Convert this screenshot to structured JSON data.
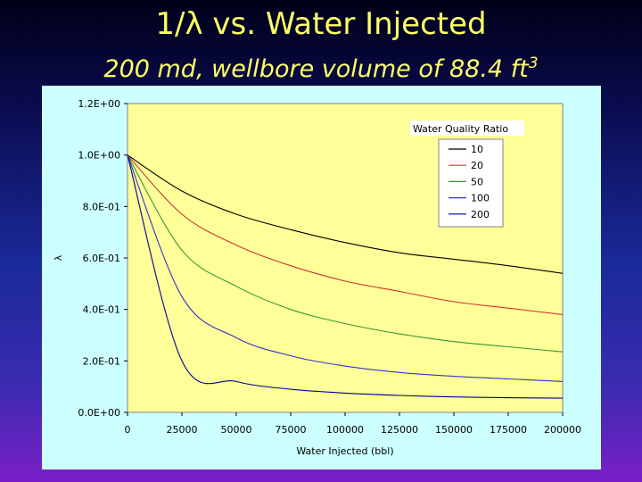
{
  "slide": {
    "title": "1/λ vs. Water Injected",
    "subtitle": "200 md, wellbore volume of 88.4 ft",
    "subtitle_superscript": "3"
  },
  "chart_data": {
    "type": "line",
    "title": "",
    "xlabel": "Water Injected (bbl)",
    "ylabel": "λ",
    "xlim": [
      0,
      200000
    ],
    "ylim": [
      0,
      1.2
    ],
    "x_ticks": [
      "0",
      "25000",
      "50000",
      "75000",
      "100000",
      "125000",
      "150000",
      "175000",
      "200000"
    ],
    "y_ticks": [
      "0.0E+00",
      "2.0E-01",
      "4.0E-01",
      "6.0E-01",
      "8.0E-01",
      "1.0E+00",
      "1.2E+00"
    ],
    "grid": false,
    "plot_background": "#ffff99",
    "legend": {
      "title": "Water Quality Ratio",
      "placement": "top-right"
    },
    "series": [
      {
        "name": "10",
        "color": "#000000",
        "x": [
          0,
          25000,
          50000,
          75000,
          100000,
          125000,
          150000,
          175000,
          200000
        ],
        "values": [
          1.0,
          0.86,
          0.77,
          0.71,
          0.66,
          0.62,
          0.595,
          0.57,
          0.54
        ]
      },
      {
        "name": "20",
        "color": "#cc3333",
        "x": [
          0,
          25000,
          50000,
          75000,
          100000,
          125000,
          150000,
          175000,
          200000
        ],
        "values": [
          1.0,
          0.77,
          0.65,
          0.57,
          0.51,
          0.47,
          0.43,
          0.405,
          0.38
        ]
      },
      {
        "name": "50",
        "color": "#339933",
        "x": [
          0,
          25000,
          50000,
          75000,
          100000,
          125000,
          150000,
          175000,
          200000
        ],
        "values": [
          1.0,
          0.63,
          0.49,
          0.4,
          0.345,
          0.305,
          0.275,
          0.255,
          0.235
        ]
      },
      {
        "name": "100",
        "color": "#3333cc",
        "x": [
          0,
          25000,
          50000,
          75000,
          100000,
          125000,
          150000,
          175000,
          200000
        ],
        "values": [
          1.0,
          0.45,
          0.29,
          0.22,
          0.18,
          0.155,
          0.14,
          0.13,
          0.12
        ]
      },
      {
        "name": "200",
        "color": "#000099",
        "x": [
          0,
          25000,
          50000,
          75000,
          100000,
          125000,
          150000,
          175000,
          200000
        ],
        "values": [
          1.0,
          0.2,
          0.12,
          0.09,
          0.075,
          0.066,
          0.06,
          0.057,
          0.055
        ]
      }
    ]
  }
}
